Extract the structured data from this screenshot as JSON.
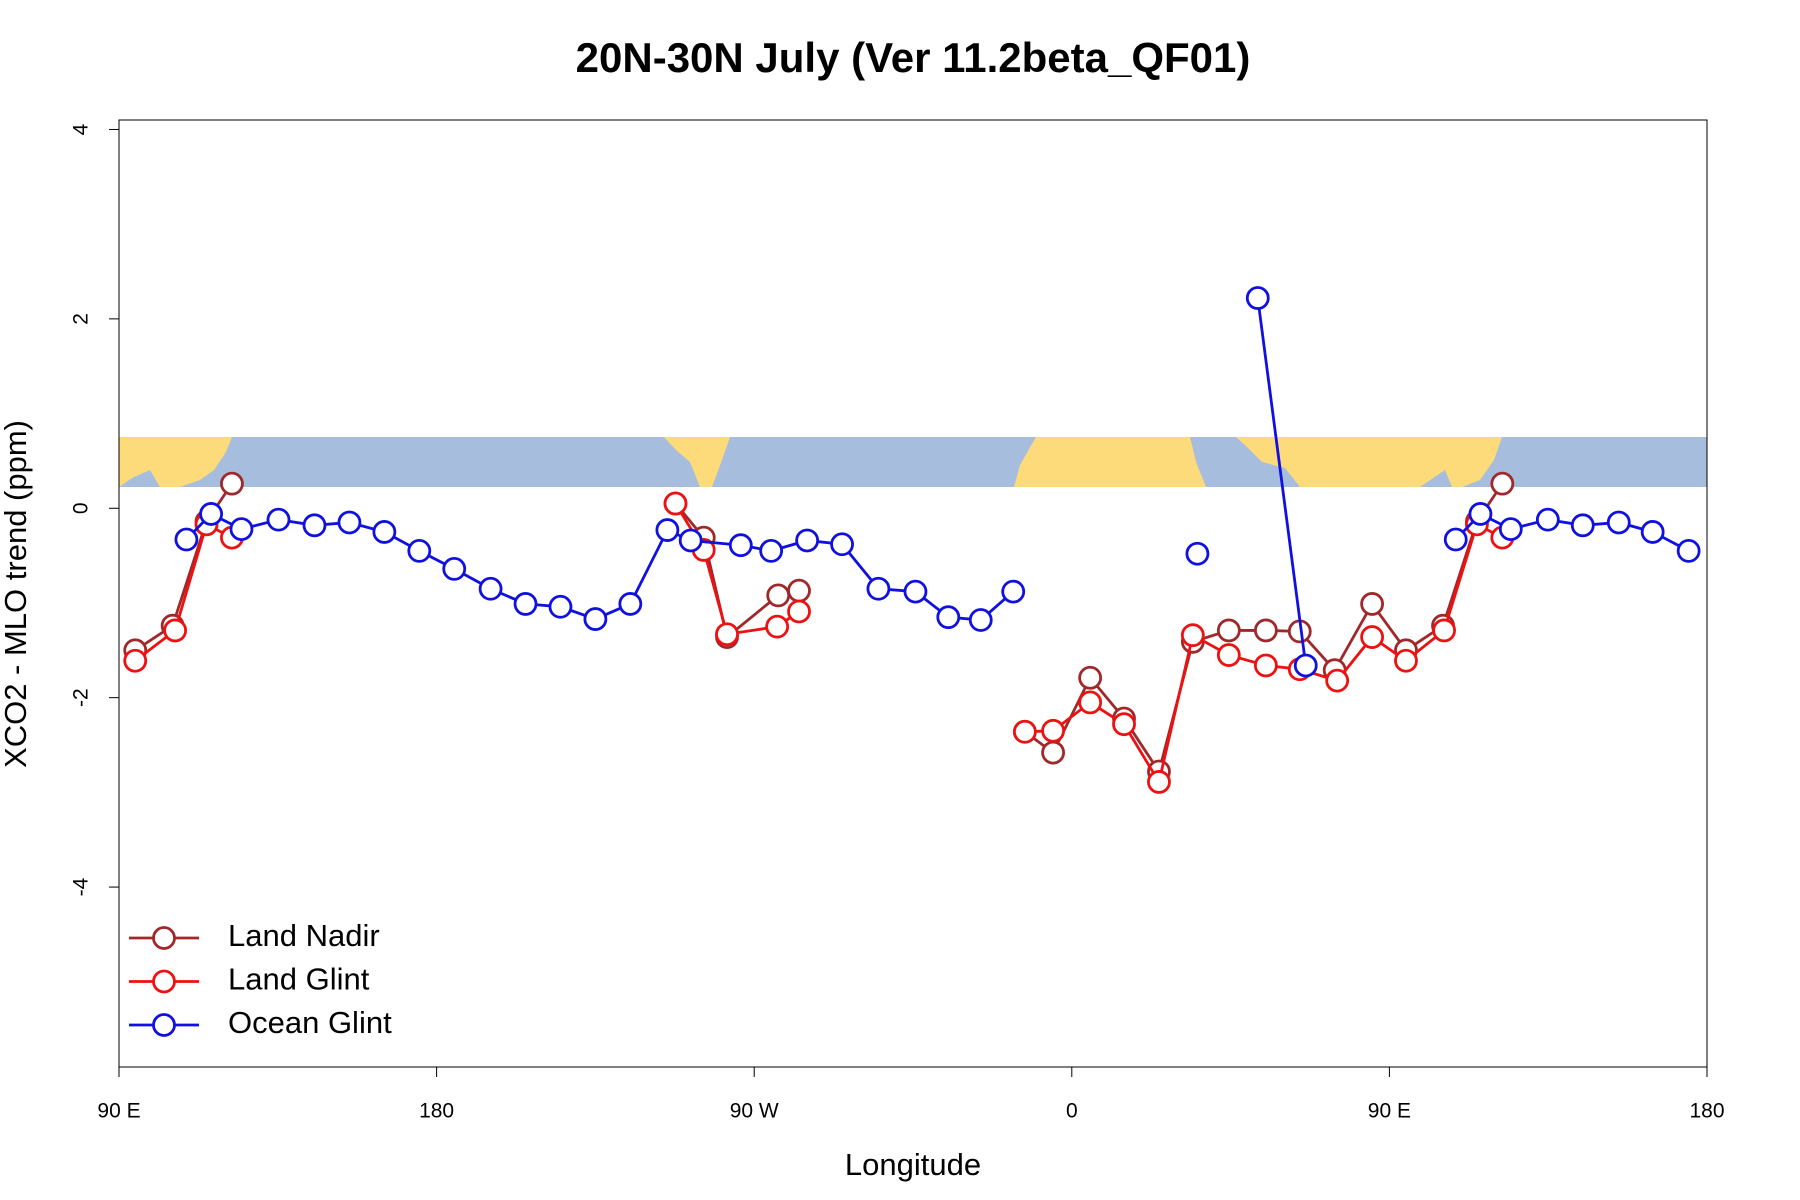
{
  "chart_data": {
    "type": "line",
    "title": "20N-30N July (Ver 11.2beta_QF01)",
    "xlabel": "Longitude",
    "ylabel": "XCO2 - MLO trend (ppm)",
    "xlim": [
      90,
      540
    ],
    "ylim": [
      -5.9,
      4.1
    ],
    "xticks": [
      {
        "value": 90,
        "label": "90 E"
      },
      180,
      {
        "value": 270,
        "label": "90 W"
      },
      {
        "value": 360,
        "label": "0"
      },
      {
        "value": 450,
        "label": "90 E"
      },
      {
        "value": 540,
        "label": "180"
      }
    ],
    "yticks": [
      -4,
      -2,
      0,
      2,
      4
    ],
    "legend": "bottom-left",
    "series": [
      {
        "name": "Land Nadir",
        "color": "#a0282a",
        "x": [
          94.6,
          105.2,
          114.8,
          122,
          null,
          247.7,
          255.7,
          262.3,
          276.8,
          282.7,
          null,
          346.7,
          354.7,
          365.2,
          374.8,
          384.7,
          394.3,
          404.5,
          415,
          424.6,
          434.5,
          445.1,
          454.7,
          465.2,
          474.8,
          482
        ],
        "values": [
          -1.5,
          -1.24,
          -0.14,
          0.26,
          null,
          0.05,
          -0.31,
          -1.36,
          -0.92,
          -0.87,
          null,
          -2.36,
          -2.58,
          -1.79,
          -2.22,
          -2.78,
          -1.41,
          -1.29,
          -1.29,
          -1.3,
          -1.71,
          -1.01,
          -1.5,
          -1.24,
          -0.14,
          0.26
        ]
      },
      {
        "name": "Land Glint",
        "color": "#ee1111",
        "x": [
          94.6,
          105.9,
          114.8,
          122,
          null,
          247.7,
          255.7,
          262.3,
          276.5,
          282.7,
          null,
          346.7,
          354.7,
          365.2,
          374.8,
          384.7,
          394.3,
          404.5,
          415,
          424.6,
          435.2,
          445.1,
          454.7,
          465.5,
          474.8,
          482
        ],
        "values": [
          -1.61,
          -1.29,
          -0.17,
          -0.31,
          null,
          0.05,
          -0.44,
          -1.33,
          -1.25,
          -1.09,
          null,
          -2.36,
          -2.35,
          -2.05,
          -2.28,
          -2.89,
          -1.34,
          -1.55,
          -1.66,
          -1.7,
          -1.82,
          -1.36,
          -1.61,
          -1.29,
          -0.17,
          -0.31
        ]
      },
      {
        "name": "Ocean Glint",
        "color": "#1010e0",
        "x": [
          109.1,
          116.1,
          124.7,
          135.2,
          145.4,
          155.3,
          165.2,
          175.1,
          185,
          195.3,
          205.2,
          215.1,
          225,
          234.9,
          245.4,
          252,
          266.2,
          274.8,
          285,
          294.9,
          305.2,
          315.7,
          325,
          334.2,
          343.4,
          null,
          395.6,
          null,
          412.7,
          426.3,
          null,
          468.8,
          475.8,
          484.4,
          494.9,
          504.8,
          515,
          524.6,
          534.8
        ],
        "values": [
          -0.33,
          -0.06,
          -0.22,
          -0.12,
          -0.18,
          -0.15,
          -0.25,
          -0.45,
          -0.64,
          -0.85,
          -1.01,
          -1.04,
          -1.17,
          -1.01,
          -0.23,
          -0.34,
          -0.39,
          -0.45,
          -0.34,
          -0.38,
          -0.85,
          -0.88,
          -1.15,
          -1.18,
          -0.88,
          null,
          -0.48,
          null,
          2.22,
          -1.66,
          null,
          -0.33,
          -0.06,
          -0.22,
          -0.12,
          -0.18,
          -0.15,
          -0.25,
          -0.45
        ]
      }
    ]
  }
}
